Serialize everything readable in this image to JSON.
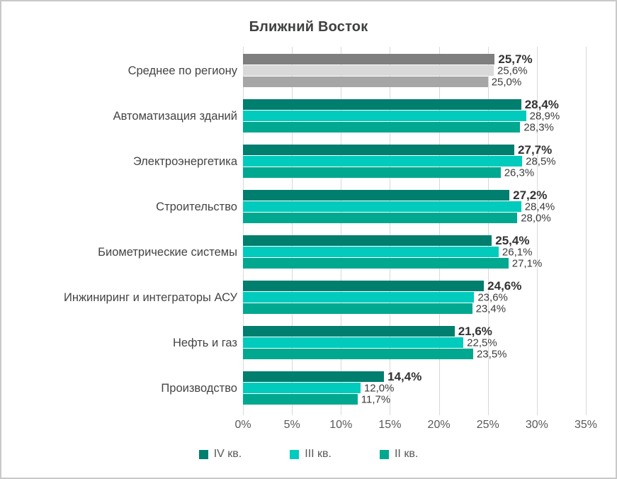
{
  "title": "Ближний Восток",
  "colors": {
    "background": "#FFFFFF",
    "border": "#C9C9C9",
    "gridline": "#D9D9D9",
    "title_text": "#3F4040",
    "category_text": "#444444",
    "value_text": "#3C3C3C",
    "axis_text": "#595959"
  },
  "chart_data": {
    "type": "bar",
    "orientation": "horizontal",
    "title": "Ближний Восток",
    "xlim": [
      0,
      35
    ],
    "x_tick_labels": [
      "0%",
      "5%",
      "10%",
      "15%",
      "20%",
      "25%",
      "30%",
      "35%"
    ],
    "grid": true,
    "legend_position": "bottom",
    "categories": [
      "Среднее по региону",
      "Автоматизация зданий",
      "Электроэнергетика",
      "Строительство",
      "Биометрические системы",
      "Инжиниринг и интеграторы АСУ",
      "Нефть и газ",
      "Производство"
    ],
    "muted_category_index": 0,
    "muted_colors": [
      "#7F7F7F",
      "#D9D9D9",
      "#A6A6A6"
    ],
    "series": [
      {
        "name": "IV кв.",
        "color": "#007E6E",
        "values": [
          25.7,
          28.4,
          27.7,
          27.2,
          25.4,
          24.6,
          21.6,
          14.4
        ],
        "labels": [
          "25,7%",
          "28,4%",
          "27,7%",
          "27,2%",
          "25,4%",
          "24,6%",
          "21,6%",
          "14,4%"
        ]
      },
      {
        "name": "III кв.",
        "color": "#00CBBC",
        "values": [
          25.6,
          28.9,
          28.5,
          28.4,
          26.1,
          23.6,
          22.5,
          12.0
        ],
        "labels": [
          "25,6%",
          "28,9%",
          "28,5%",
          "28,4%",
          "26,1%",
          "23,6%",
          "22,5%",
          "12,0%"
        ]
      },
      {
        "name": "II кв.",
        "color": "#00A890",
        "values": [
          25.0,
          28.3,
          26.3,
          28.0,
          27.1,
          23.4,
          23.5,
          11.7
        ],
        "labels": [
          "25,0%",
          "28,3%",
          "26,3%",
          "28,0%",
          "27,1%",
          "23,4%",
          "23,5%",
          "11,7%"
        ]
      }
    ]
  }
}
